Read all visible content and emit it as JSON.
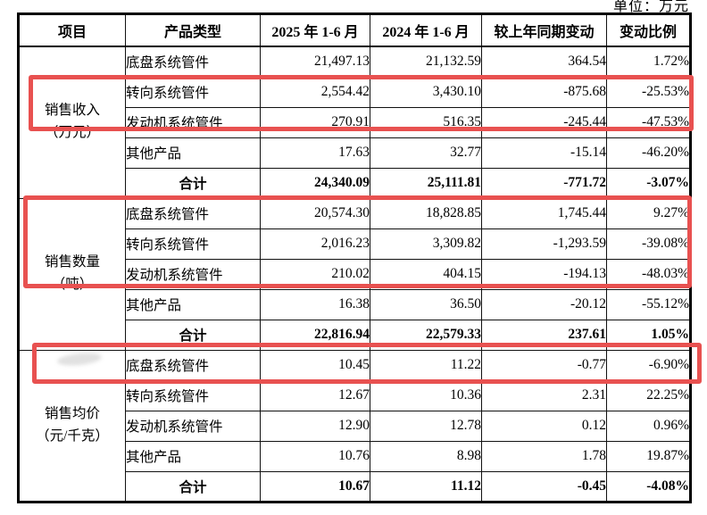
{
  "unit_label": "单位：万元",
  "highlight_color": "#e85150",
  "table": {
    "headers": [
      "项目",
      "产品类型",
      "2025 年 1-6 月",
      "2024 年 1-6 月",
      "较上年同期变动",
      "变动比例"
    ],
    "sections": [
      {
        "item_line1": "销售收入",
        "item_line2": "（万元）",
        "rows": [
          {
            "product": "底盘系统管件",
            "v2025": "21,497.13",
            "v2024": "21,132.59",
            "change": "364.54",
            "ratio": "1.72%"
          },
          {
            "product": "转向系统管件",
            "v2025": "2,554.42",
            "v2024": "3,430.10",
            "change": "-875.68",
            "ratio": "-25.53%"
          },
          {
            "product": "发动机系统管件",
            "v2025": "270.91",
            "v2024": "516.35",
            "change": "-245.44",
            "ratio": "-47.53%"
          },
          {
            "product": "其他产品",
            "v2025": "17.63",
            "v2024": "32.77",
            "change": "-15.14",
            "ratio": "-46.20%"
          },
          {
            "product": "合计",
            "v2025": "24,340.09",
            "v2024": "25,111.81",
            "change": "-771.72",
            "ratio": "-3.07%"
          }
        ]
      },
      {
        "item_line1": "销售数量",
        "item_line2": "（吨）",
        "rows": [
          {
            "product": "底盘系统管件",
            "v2025": "20,574.30",
            "v2024": "18,828.85",
            "change": "1,745.44",
            "ratio": "9.27%"
          },
          {
            "product": "转向系统管件",
            "v2025": "2,016.23",
            "v2024": "3,309.82",
            "change": "-1,293.59",
            "ratio": "-39.08%"
          },
          {
            "product": "发动机系统管件",
            "v2025": "210.02",
            "v2024": "404.15",
            "change": "-194.13",
            "ratio": "-48.03%"
          },
          {
            "product": "其他产品",
            "v2025": "16.38",
            "v2024": "36.50",
            "change": "-20.12",
            "ratio": "-55.12%"
          },
          {
            "product": "合计",
            "v2025": "22,816.94",
            "v2024": "22,579.33",
            "change": "237.61",
            "ratio": "1.05%"
          }
        ]
      },
      {
        "item_line1": "销售均价",
        "item_line2": "（元/千克）",
        "rows": [
          {
            "product": "底盘系统管件",
            "v2025": "10.45",
            "v2024": "11.22",
            "change": "-0.77",
            "ratio": "-6.90%"
          },
          {
            "product": "转向系统管件",
            "v2025": "12.67",
            "v2024": "10.36",
            "change": "2.31",
            "ratio": "22.25%"
          },
          {
            "product": "发动机系统管件",
            "v2025": "12.90",
            "v2024": "12.78",
            "change": "0.12",
            "ratio": "0.96%"
          },
          {
            "product": "其他产品",
            "v2025": "10.76",
            "v2024": "8.98",
            "change": "1.78",
            "ratio": "19.87%"
          },
          {
            "product": "合计",
            "v2025": "10.67",
            "v2024": "11.12",
            "change": "-0.45",
            "ratio": "-4.08%"
          }
        ]
      }
    ]
  }
}
